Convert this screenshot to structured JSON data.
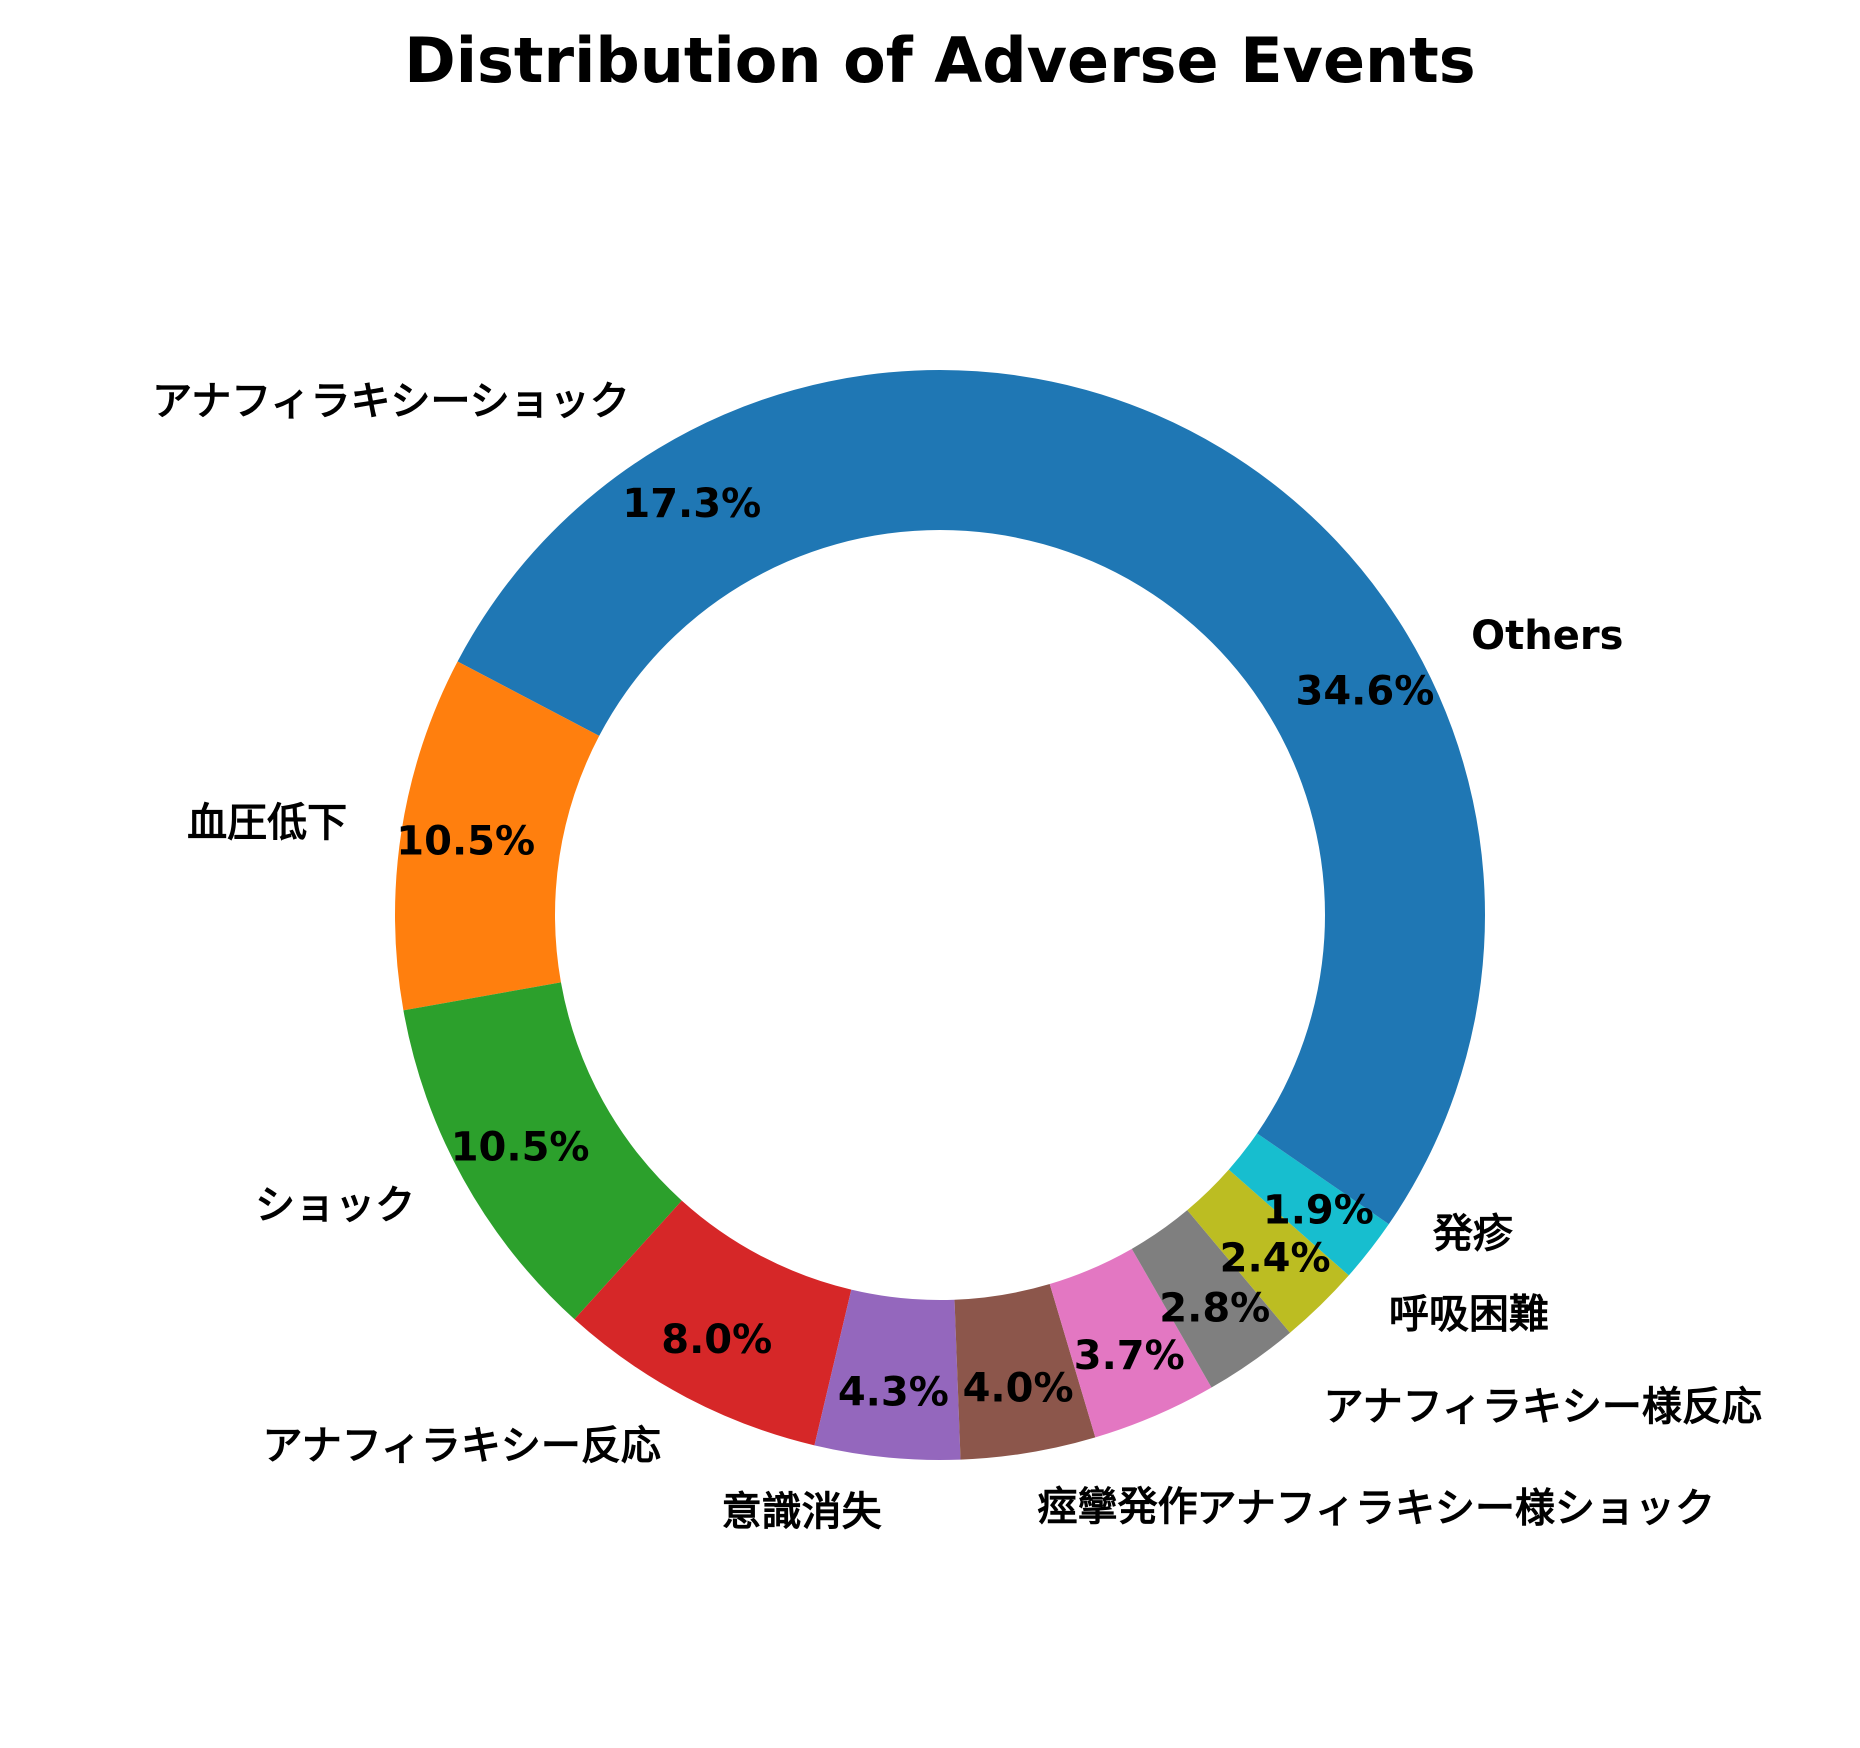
{
  "chart_data": {
    "type": "pie",
    "donut": true,
    "title": "Distribution of Adverse Events",
    "start_angle_deg": 90,
    "direction": "counterclockwise",
    "slices": [
      {
        "label": "アナフィラキシーショック",
        "value": 17.3,
        "pct_label": "17.3%",
        "color": "#1f77b4"
      },
      {
        "label": "血圧低下",
        "value": 10.5,
        "pct_label": "10.5%",
        "color": "#ff7f0e"
      },
      {
        "label": "ショック",
        "value": 10.5,
        "pct_label": "10.5%",
        "color": "#2ca02c"
      },
      {
        "label": "アナフィラキシー反応",
        "value": 8.0,
        "pct_label": "8.0%",
        "color": "#d62728"
      },
      {
        "label": "意識消失",
        "value": 4.3,
        "pct_label": "4.3%",
        "color": "#9467bd"
      },
      {
        "label": "痙攣発作",
        "value": 4.0,
        "pct_label": "4.0%",
        "color": "#8c564b"
      },
      {
        "label": "アナフィラキシー様ショック",
        "value": 3.7,
        "pct_label": "3.7%",
        "color": "#e377c2"
      },
      {
        "label": "アナフィラキシー様反応",
        "value": 2.8,
        "pct_label": "2.8%",
        "color": "#7f7f7f"
      },
      {
        "label": "呼吸困難",
        "value": 2.4,
        "pct_label": "2.4%",
        "color": "#bcbd22"
      },
      {
        "label": "発疹",
        "value": 1.9,
        "pct_label": "1.9%",
        "color": "#17becf"
      },
      {
        "label": "Others",
        "value": 34.6,
        "pct_label": "34.6%",
        "color": "#1f77b4"
      }
    ]
  }
}
